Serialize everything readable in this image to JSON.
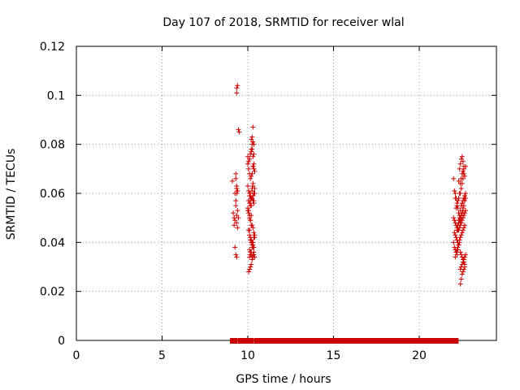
{
  "chart_data": {
    "type": "scatter",
    "title": "Day 107 of 2018, SRMTID for receiver wlal",
    "xlabel": "GPS time / hours",
    "ylabel": "SRMTID / TECUs",
    "xlim": [
      0,
      24.5
    ],
    "ylim": [
      0,
      0.12
    ],
    "x_ticks": [
      0,
      5,
      10,
      15,
      20
    ],
    "x_tick_labels": [
      "0",
      "5",
      "10",
      "15",
      "20"
    ],
    "y_ticks": [
      0,
      0.02,
      0.04,
      0.06,
      0.08,
      0.1,
      0.12
    ],
    "y_tick_labels": [
      "0",
      "0.02",
      "0.04",
      "0.06",
      "0.08",
      "0.1",
      "0.12"
    ],
    "grid": true,
    "marker": "+",
    "color": "#cc0000",
    "zero_line_bands": [
      [
        9.1,
        9.25
      ],
      [
        9.55,
        9.9
      ],
      [
        10.0,
        10.2
      ],
      [
        10.5,
        22.15
      ]
    ],
    "series": [
      {
        "x": [
          9.1,
          9.15,
          9.2,
          9.25,
          9.3,
          9.2,
          9.25,
          9.3,
          9.35,
          9.25,
          9.3,
          9.35,
          9.4,
          9.35,
          9.4,
          9.45,
          9.35,
          9.35,
          9.4,
          9.45,
          9.5,
          9.3,
          9.35,
          9.3,
          9.35,
          9.4,
          9.35,
          10.0,
          10.05,
          10.1,
          10.15,
          10.2,
          10.25,
          10.3,
          10.35,
          10.4,
          10.0,
          10.05,
          10.1,
          10.15,
          10.2,
          10.25,
          10.3,
          10.35,
          10.05,
          10.1,
          10.15,
          10.2,
          10.25,
          10.3,
          10.35,
          10.4,
          10.0,
          10.05,
          10.1,
          10.15,
          10.2,
          10.25,
          10.3,
          10.35,
          10.4,
          10.05,
          10.1,
          10.15,
          10.2,
          10.25,
          10.3,
          10.35,
          10.1,
          10.15,
          10.2,
          10.25,
          10.3,
          10.35,
          10.4,
          10.1,
          10.15,
          10.2,
          10.25,
          10.3,
          10.35,
          10.4,
          10.0,
          10.05,
          10.1,
          10.15,
          10.2,
          10.25,
          10.3,
          10.2,
          10.25,
          10.3,
          10.35,
          10.2,
          10.25,
          10.3,
          10.35,
          10.3,
          10.35,
          10.3,
          10.4,
          10.15,
          10.2,
          10.1,
          10.15,
          10.2,
          10.25,
          10.3,
          10.35,
          10.0,
          10.05,
          10.1,
          10.15,
          10.2,
          10.1,
          10.15,
          10.2,
          10.25,
          10.3,
          10.05,
          10.1,
          10.15,
          10.2,
          10.25,
          10.3,
          10.35,
          22.0,
          22.05,
          22.1,
          22.15,
          22.2,
          22.25,
          22.3,
          22.35,
          22.4,
          22.45,
          22.5,
          22.55,
          22.6,
          22.65,
          22.7,
          22.0,
          22.05,
          22.1,
          22.15,
          22.2,
          22.25,
          22.3,
          22.35,
          22.4,
          22.45,
          22.5,
          22.55,
          22.6,
          22.65,
          22.7,
          22.05,
          22.1,
          22.15,
          22.2,
          22.25,
          22.3,
          22.35,
          22.4,
          22.45,
          22.5,
          22.55,
          22.6,
          22.65,
          22.7,
          22.0,
          22.05,
          22.1,
          22.15,
          22.2,
          22.25,
          22.3,
          22.35,
          22.4,
          22.45,
          22.5,
          22.55,
          22.6,
          22.65,
          22.1,
          22.15,
          22.2,
          22.25,
          22.3,
          22.35,
          22.4,
          22.45,
          22.5,
          22.55,
          22.6,
          22.65,
          22.1,
          22.15,
          22.2,
          22.25,
          22.3,
          22.35,
          22.4,
          22.45,
          22.5,
          22.55,
          22.6,
          22.2,
          22.25,
          22.3,
          22.35,
          22.4,
          22.45,
          22.5,
          22.55,
          22.6,
          22.65,
          22.7,
          22.3,
          22.35,
          22.4,
          22.45,
          22.5,
          22.55,
          22.6,
          22.4,
          22.45,
          22.5,
          22.55,
          22.6,
          22.65,
          22.7,
          22.4,
          22.45,
          22.5,
          22.55,
          22.6,
          22.65,
          22.4,
          22.45,
          22.5,
          22.55
        ],
        "y": [
          0.065,
          0.052,
          0.05,
          0.049,
          0.057,
          0.047,
          0.06,
          0.068,
          0.063,
          0.038,
          0.035,
          0.034,
          0.053,
          0.048,
          0.046,
          0.05,
          0.103,
          0.101,
          0.104,
          0.086,
          0.085,
          0.066,
          0.06,
          0.055,
          0.062,
          0.061,
          0.051,
          0.072,
          0.07,
          0.068,
          0.066,
          0.067,
          0.068,
          0.071,
          0.072,
          0.069,
          0.063,
          0.061,
          0.06,
          0.059,
          0.058,
          0.062,
          0.064,
          0.06,
          0.057,
          0.056,
          0.055,
          0.058,
          0.061,
          0.059,
          0.057,
          0.06,
          0.053,
          0.052,
          0.05,
          0.049,
          0.051,
          0.047,
          0.046,
          0.044,
          0.042,
          0.045,
          0.043,
          0.042,
          0.041,
          0.04,
          0.039,
          0.038,
          0.037,
          0.036,
          0.035,
          0.038,
          0.04,
          0.042,
          0.043,
          0.034,
          0.035,
          0.036,
          0.034,
          0.035,
          0.036,
          0.034,
          0.075,
          0.073,
          0.074,
          0.076,
          0.078,
          0.08,
          0.081,
          0.082,
          0.083,
          0.087,
          0.08,
          0.077,
          0.078,
          0.075,
          0.076,
          0.071,
          0.07,
          0.063,
          0.062,
          0.06,
          0.058,
          0.059,
          0.057,
          0.055,
          0.058,
          0.057,
          0.056,
          0.054,
          0.053,
          0.051,
          0.049,
          0.047,
          0.045,
          0.041,
          0.04,
          0.039,
          0.038,
          0.028,
          0.029,
          0.03,
          0.031,
          0.033,
          0.034,
          0.035,
          0.066,
          0.061,
          0.058,
          0.054,
          0.055,
          0.057,
          0.058,
          0.06,
          0.064,
          0.066,
          0.068,
          0.069,
          0.07,
          0.067,
          0.071,
          0.05,
          0.049,
          0.048,
          0.047,
          0.046,
          0.045,
          0.048,
          0.049,
          0.05,
          0.051,
          0.052,
          0.053,
          0.055,
          0.057,
          0.058,
          0.044,
          0.043,
          0.042,
          0.041,
          0.04,
          0.045,
          0.046,
          0.047,
          0.048,
          0.049,
          0.05,
          0.051,
          0.052,
          0.053,
          0.04,
          0.038,
          0.037,
          0.036,
          0.035,
          0.037,
          0.039,
          0.041,
          0.042,
          0.043,
          0.044,
          0.045,
          0.046,
          0.047,
          0.034,
          0.036,
          0.037,
          0.038,
          0.039,
          0.04,
          0.036,
          0.035,
          0.034,
          0.033,
          0.032,
          0.031,
          0.06,
          0.058,
          0.056,
          0.054,
          0.052,
          0.05,
          0.06,
          0.062,
          0.064,
          0.066,
          0.068,
          0.045,
          0.047,
          0.049,
          0.051,
          0.053,
          0.055,
          0.056,
          0.057,
          0.058,
          0.059,
          0.06,
          0.065,
          0.07,
          0.072,
          0.074,
          0.075,
          0.073,
          0.071,
          0.029,
          0.03,
          0.031,
          0.032,
          0.033,
          0.034,
          0.035,
          0.023,
          0.025,
          0.027,
          0.028,
          0.029,
          0.03,
          0.048,
          0.05,
          0.052,
          0.054
        ]
      }
    ]
  }
}
